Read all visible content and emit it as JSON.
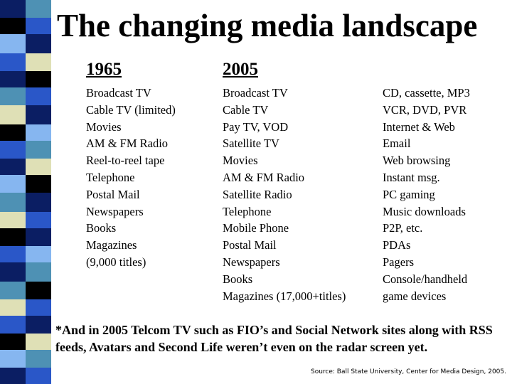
{
  "title": "The changing media landscape",
  "stripe_colors": {
    "navy": "#0b1e63",
    "blue": "#2a57c8",
    "teal": "#4e91b4",
    "light_blue": "#86b6f0",
    "cream": "#dfe0b6",
    "black": "#000000"
  },
  "columns": {
    "col_1965": {
      "header": "1965",
      "items": [
        "Broadcast TV",
        "Cable TV (limited)",
        "Movies",
        "AM & FM Radio",
        "Reel-to-reel tape",
        "Telephone",
        "Postal Mail",
        "Newspapers",
        "Books",
        "Magazines",
        "(9,000 titles)"
      ]
    },
    "col_2005": {
      "header": "2005",
      "items": [
        "Broadcast TV",
        "Cable TV",
        "Pay TV, VOD",
        "Satellite TV",
        "Movies",
        "AM & FM Radio",
        "Satellite Radio",
        "Telephone",
        "Mobile Phone",
        "Postal Mail",
        "Newspapers",
        "Books",
        "Magazines (17,000+titles)"
      ]
    },
    "col_new": {
      "items": [
        "CD, cassette, MP3",
        "VCR, DVD, PVR",
        "Internet & Web",
        "Email",
        "Web browsing",
        "Instant msg.",
        "PC gaming",
        "Music downloads",
        "P2P, etc.",
        "PDAs",
        "Pagers",
        "Console/handheld",
        "game devices"
      ]
    }
  },
  "footnote": "*And in 2005 Telcom TV such as FIO’s and Social Network sites along with RSS feeds, Avatars and Second Life weren’t even on the radar screen yet.",
  "source": "Source: Ball State University, Center for Media Design, 2005."
}
